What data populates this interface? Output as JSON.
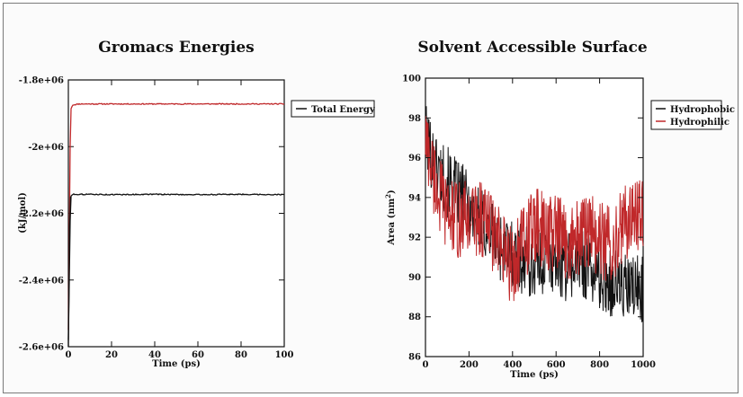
{
  "chart_data": [
    {
      "type": "line",
      "title": "Gromacs Energies",
      "xlabel": "Time (ps)",
      "ylabel": "(kJ/mol)",
      "xlim": [
        0,
        100
      ],
      "ylim": [
        -2600000,
        -1800000
      ],
      "x_ticks": [
        0,
        20,
        40,
        60,
        80,
        100
      ],
      "x_tick_labels": [
        "0",
        "20",
        "40",
        "60",
        "80",
        "100"
      ],
      "y_ticks": [
        -1800000,
        -2000000,
        -2200000,
        -2400000,
        -2600000
      ],
      "y_tick_labels": [
        "-1.8e+06",
        "-2e+06",
        "-2.2e+06",
        "-2.4e+06",
        "-2.6e+06"
      ],
      "grid": false,
      "legend": {
        "placement": "top-right",
        "entries": [
          "Total Energy"
        ]
      },
      "series": [
        {
          "color": "#c0282a",
          "x": [
            0,
            1,
            2,
            5,
            10,
            20,
            40,
            60,
            80,
            100
          ],
          "y": [
            -2550000,
            -1890000,
            -1875000,
            -1872000,
            -1872000,
            -1872000,
            -1872000,
            -1872000,
            -1872000,
            -1872000
          ]
        },
        {
          "color": "#111111",
          "x": [
            0,
            1,
            2,
            5,
            10,
            20,
            40,
            60,
            80,
            100
          ],
          "y": [
            -2580000,
            -2150000,
            -2143000,
            -2143000,
            -2143000,
            -2144000,
            -2143000,
            -2144000,
            -2143000,
            -2144000
          ]
        },
        {
          "name": "Total Energy",
          "color": "#111111",
          "x": [
            0,
            0.3,
            0.6,
            1
          ],
          "y": [
            -2600000,
            -2400000,
            -2250000,
            -2150000
          ]
        }
      ]
    },
    {
      "type": "line",
      "title": "Solvent Accessible Surface",
      "xlabel": "Time (ps)",
      "ylabel": "Area (nm",
      "ylabel_sup": "2",
      "ylabel_tail": ")",
      "xlim": [
        0,
        1000
      ],
      "ylim": [
        86,
        100
      ],
      "x_ticks": [
        0,
        200,
        400,
        600,
        800,
        1000
      ],
      "x_tick_labels": [
        "0",
        "200",
        "400",
        "600",
        "800",
        "1000"
      ],
      "y_ticks": [
        86,
        88,
        90,
        92,
        94,
        96,
        98,
        100
      ],
      "y_tick_labels": [
        "86",
        "88",
        "90",
        "92",
        "94",
        "96",
        "98",
        "100"
      ],
      "grid": false,
      "legend": {
        "placement": "top-right",
        "entries": [
          "Hydrophobic",
          "Hydrophilic"
        ]
      },
      "series": [
        {
          "name": "Hydrophobic",
          "color": "#111111",
          "x": [
            0,
            50,
            100,
            150,
            200,
            250,
            300,
            350,
            400,
            450,
            500,
            550,
            600,
            650,
            700,
            750,
            800,
            850,
            900,
            950,
            1000
          ],
          "y": [
            97,
            95.5,
            94.8,
            94.2,
            93.5,
            92.8,
            92.2,
            91.5,
            91.2,
            90.8,
            90.6,
            90.8,
            91,
            90.5,
            90.8,
            90.6,
            90,
            89.8,
            89.5,
            89.3,
            89.5
          ],
          "noise": 1.8
        },
        {
          "name": "Hydrophilic",
          "color": "#c0282a",
          "x": [
            0,
            50,
            100,
            150,
            200,
            250,
            300,
            350,
            400,
            450,
            500,
            550,
            600,
            650,
            700,
            750,
            800,
            850,
            900,
            950,
            1000
          ],
          "y": [
            97,
            94.5,
            93.2,
            92.8,
            93,
            93,
            92.5,
            91.2,
            90.6,
            91.8,
            92.5,
            92.3,
            92.2,
            91.8,
            92,
            92.3,
            91.8,
            91.6,
            92.5,
            93,
            93.5
          ],
          "noise": 2.0
        }
      ]
    }
  ]
}
